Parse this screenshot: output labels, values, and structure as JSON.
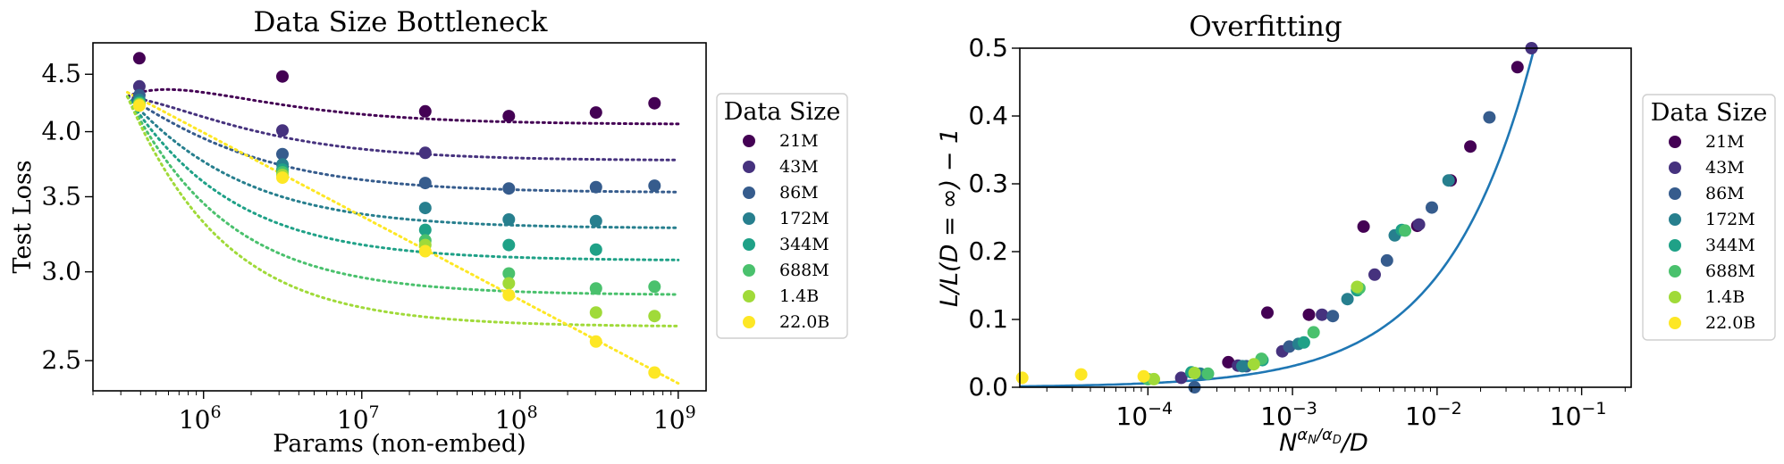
{
  "palette": [
    "#440154",
    "#46327e",
    "#365c8d",
    "#277f8e",
    "#1fa187",
    "#4ac16d",
    "#a0da39",
    "#fde725"
  ],
  "fit_color": "#1f77b4",
  "chart_data": [
    {
      "type": "scatter",
      "title": "Data Size Bottleneck",
      "xlabel": "Params (non-embed)",
      "ylabel": "Test Loss",
      "xscale": "log",
      "yscale": "log",
      "xlim": [
        200000,
        1500000000
      ],
      "ylim": [
        2.35,
        4.8
      ],
      "xticks": [
        {
          "value": 1000000,
          "base": "10",
          "exp": "6"
        },
        {
          "value": 10000000,
          "base": "10",
          "exp": "7"
        },
        {
          "value": 100000000,
          "base": "10",
          "exp": "8"
        },
        {
          "value": 1000000000,
          "base": "10",
          "exp": "9"
        }
      ],
      "yticks": [
        {
          "value": 2.5,
          "label": "2.5"
        },
        {
          "value": 3.0,
          "label": "3.0"
        },
        {
          "value": 3.5,
          "label": "3.5"
        },
        {
          "value": 4.0,
          "label": "4.0"
        },
        {
          "value": 4.5,
          "label": "4.5"
        }
      ],
      "legend": {
        "title": "Data Size",
        "position": "outside-right"
      },
      "series": [
        {
          "name": "21M",
          "color": "#440154",
          "points": [
            [
              393000,
              4.65
            ],
            [
              3150000,
              4.48
            ],
            [
              25200000,
              4.17
            ],
            [
              85000000,
              4.13
            ],
            [
              302000000,
              4.16
            ],
            [
              708000000,
              4.24
            ]
          ],
          "fit": {
            "Linf": 4.06,
            "A": 2.5,
            "k": 0.7
          }
        },
        {
          "name": "43M",
          "color": "#46327e",
          "points": [
            [
              393000,
              4.39
            ],
            [
              3150000,
              4.01
            ],
            [
              25200000,
              3.83
            ]
          ],
          "fit": {
            "Linf": 3.77,
            "A": 2.5,
            "k": 0.7
          }
        },
        {
          "name": "86M",
          "color": "#365c8d",
          "points": [
            [
              393000,
              4.31
            ],
            [
              3150000,
              3.82
            ],
            [
              25200000,
              3.6
            ],
            [
              85000000,
              3.56
            ],
            [
              302000000,
              3.57
            ],
            [
              708000000,
              3.58
            ]
          ],
          "fit": {
            "Linf": 3.53,
            "A": 2.5,
            "k": 0.7
          }
        },
        {
          "name": "172M",
          "color": "#277f8e",
          "points": [
            [
              393000,
              4.27
            ],
            [
              3150000,
              3.74
            ],
            [
              25200000,
              3.42
            ],
            [
              85000000,
              3.34
            ],
            [
              302000000,
              3.33
            ]
          ],
          "fit": {
            "Linf": 3.28,
            "A": 2.5,
            "k": 0.7
          }
        },
        {
          "name": "344M",
          "color": "#1fa187",
          "points": [
            [
              393000,
              4.25
            ],
            [
              3150000,
              3.7
            ],
            [
              25200000,
              3.27
            ],
            [
              85000000,
              3.17
            ],
            [
              302000000,
              3.14
            ]
          ],
          "fit": {
            "Linf": 3.07,
            "A": 2.5,
            "k": 0.7
          }
        },
        {
          "name": "688M",
          "color": "#4ac16d",
          "points": [
            [
              393000,
              4.24
            ],
            [
              3150000,
              3.68
            ],
            [
              25200000,
              3.2
            ],
            [
              85000000,
              2.99
            ],
            [
              302000000,
              2.9
            ],
            [
              708000000,
              2.91
            ]
          ],
          "fit": {
            "Linf": 2.86,
            "A": 2.5,
            "k": 0.7
          }
        },
        {
          "name": "1.4B",
          "color": "#a0da39",
          "points": [
            [
              393000,
              4.23
            ],
            [
              3150000,
              3.66
            ],
            [
              25200000,
              3.17
            ],
            [
              85000000,
              2.93
            ],
            [
              302000000,
              2.76
            ],
            [
              708000000,
              2.74
            ]
          ],
          "fit": {
            "Linf": 2.68,
            "A": 2.5,
            "k": 0.7
          }
        },
        {
          "name": "22.0B",
          "color": "#fde725",
          "points": [
            [
              393000,
              4.22
            ],
            [
              3150000,
              3.64
            ],
            [
              25200000,
              3.13
            ],
            [
              85000000,
              2.86
            ],
            [
              302000000,
              2.6
            ],
            [
              708000000,
              2.44
            ]
          ],
          "fit": {
            "Linf": 0,
            "A": 2.5,
            "k": 0.7
          }
        }
      ]
    },
    {
      "type": "scatter",
      "title": "Overfitting",
      "xlabel_parts": {
        "base": "N",
        "sup": "α",
        "sub1": "N",
        "slash": "/",
        "sup2": "α",
        "sub2": "D",
        "tail": "/D"
      },
      "ylabel": "L/L(D = ∞) − 1",
      "xscale": "log",
      "xlim": [
        1.3e-05,
        0.22
      ],
      "ylim": [
        0,
        0.5
      ],
      "xticks": [
        {
          "value": 0.0001,
          "base": "10",
          "exp": "−4"
        },
        {
          "value": 0.001,
          "base": "10",
          "exp": "−3"
        },
        {
          "value": 0.01,
          "base": "10",
          "exp": "−2"
        },
        {
          "value": 0.1,
          "base": "10",
          "exp": "−1"
        }
      ],
      "yticks": [
        {
          "value": 0.0,
          "label": "0.0"
        },
        {
          "value": 0.1,
          "label": "0.1"
        },
        {
          "value": 0.2,
          "label": "0.2"
        },
        {
          "value": 0.3,
          "label": "0.3"
        },
        {
          "value": 0.4,
          "label": "0.4"
        },
        {
          "value": 0.5,
          "label": "0.5"
        }
      ],
      "legend": {
        "title": "Data Size",
        "position": "outside-right"
      },
      "fit": {
        "a": 8.2,
        "b": 1.1,
        "c": 0.0012
      },
      "series": [
        {
          "name": "21M",
          "color": "#440154",
          "points": [
            [
              0.00036,
              0.037
            ],
            [
              0.00067,
              0.11
            ],
            [
              0.0013,
              0.107
            ],
            [
              0.0031,
              0.237
            ],
            [
              0.0073,
              0.238
            ],
            [
              0.0124,
              0.305
            ],
            [
              0.017,
              0.355
            ],
            [
              0.036,
              0.472
            ]
          ]
        },
        {
          "name": "43M",
          "color": "#46327e",
          "points": [
            [
              0.00017,
              0.014
            ],
            [
              0.00042,
              0.032
            ],
            [
              0.00085,
              0.053
            ],
            [
              0.0016,
              0.107
            ],
            [
              0.0037,
              0.166
            ],
            [
              0.0075,
              0.24
            ],
            [
              0.045,
              0.5
            ]
          ]
        },
        {
          "name": "86M",
          "color": "#365c8d",
          "points": [
            [
              0.00021,
              0.0
            ],
            [
              0.00048,
              0.031
            ],
            [
              0.00095,
              0.06
            ],
            [
              0.0019,
              0.105
            ],
            [
              0.0045,
              0.187
            ],
            [
              0.0092,
              0.265
            ],
            [
              0.023,
              0.398
            ]
          ]
        },
        {
          "name": "172M",
          "color": "#277f8e",
          "points": [
            [
              0.00023,
              0.02
            ],
            [
              0.00045,
              0.031
            ],
            [
              0.0011,
              0.064
            ],
            [
              0.0024,
              0.13
            ],
            [
              0.0051,
              0.224
            ],
            [
              0.012,
              0.305
            ]
          ]
        },
        {
          "name": "344M",
          "color": "#1fa187",
          "points": [
            [
              0.0002,
              0.022
            ],
            [
              0.00062,
              0.04
            ],
            [
              0.0012,
              0.066
            ],
            [
              0.0028,
              0.143
            ],
            [
              0.0057,
              0.232
            ]
          ]
        },
        {
          "name": "688M",
          "color": "#4ac16d",
          "points": [
            [
              0.0001,
              0.012
            ],
            [
              0.00026,
              0.02
            ],
            [
              0.00061,
              0.042
            ],
            [
              0.0014,
              0.081
            ],
            [
              0.0029,
              0.146
            ],
            [
              0.006,
              0.231
            ]
          ]
        },
        {
          "name": "1.4B",
          "color": "#a0da39",
          "points": [
            [
              0.00011,
              0.012
            ],
            [
              0.00021,
              0.021
            ],
            [
              0.00054,
              0.034
            ],
            [
              0.0028,
              0.148
            ]
          ]
        },
        {
          "name": "22.0B",
          "color": "#fde725",
          "points": [
            [
              1.35e-05,
              0.014
            ],
            [
              3.45e-05,
              0.019
            ],
            [
              9.35e-05,
              0.016
            ]
          ]
        }
      ]
    }
  ]
}
